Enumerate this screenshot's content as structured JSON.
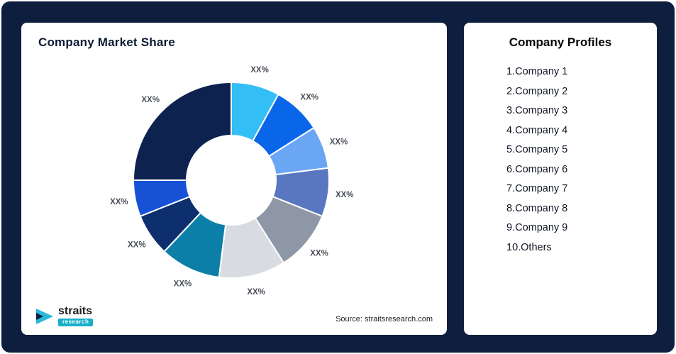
{
  "page": {
    "background": "#0E1E3E"
  },
  "left_card": {
    "title": "Company Market Share",
    "source": "Source: straitsresearch.com",
    "logo": {
      "title": "straits",
      "subtitle": "research"
    }
  },
  "right_card": {
    "title": "Company Profiles",
    "items": [
      "1.Company 1",
      "2.Company 2",
      "3.Company 3",
      "4.Company 4",
      "5.Company 5",
      "6.Company 6",
      "7.Company 7",
      "8.Company 8",
      "9.Company 9",
      "10.Others"
    ]
  },
  "chart_data": {
    "type": "pie",
    "subtype": "donut",
    "title": "Company Market Share",
    "start_angle_deg": 0,
    "direction": "clockwise",
    "inner_radius_ratio": 0.46,
    "segments": [
      {
        "name": "Company 1",
        "label": "XX%",
        "value": 8,
        "color": "#33BFF5"
      },
      {
        "name": "Company 2",
        "label": "XX%",
        "value": 8,
        "color": "#0A66E8"
      },
      {
        "name": "Company 3",
        "label": "XX%",
        "value": 7,
        "color": "#6BA6F5"
      },
      {
        "name": "Company 4",
        "label": "XX%",
        "value": 8,
        "color": "#5877C0"
      },
      {
        "name": "Company 5",
        "label": "XX%",
        "value": 10,
        "color": "#8E97A6"
      },
      {
        "name": "Company 6",
        "label": "XX%",
        "value": 11,
        "color": "#D8DCE1"
      },
      {
        "name": "Company 7",
        "label": "XX%",
        "value": 10,
        "color": "#0C7FA8"
      },
      {
        "name": "Company 8",
        "label": "XX%",
        "value": 7,
        "color": "#0E2F6E"
      },
      {
        "name": "Company 9",
        "label": "XX%",
        "value": 6,
        "color": "#1752D6"
      },
      {
        "name": "Others",
        "label": "XX%",
        "value": 25,
        "color": "#0E2250"
      }
    ]
  }
}
